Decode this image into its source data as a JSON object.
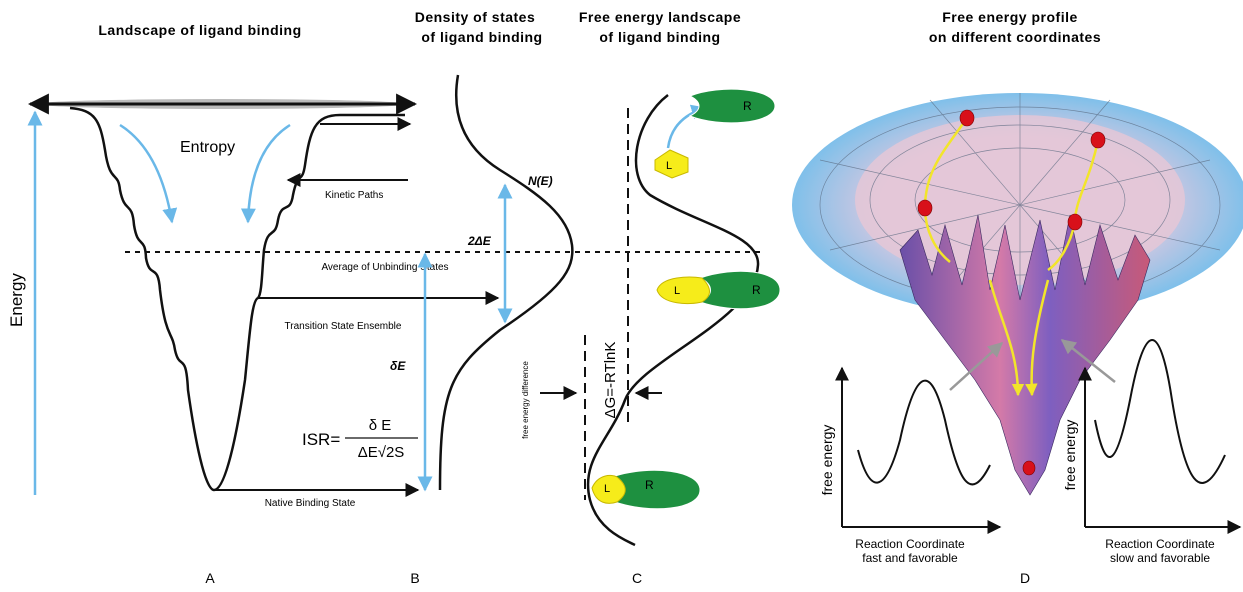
{
  "panels": [
    {
      "letter": "A",
      "title": [
        "Landscape of ligand binding"
      ]
    },
    {
      "letter": "B",
      "title": [
        "Density of states",
        "of ligand binding"
      ]
    },
    {
      "letter": "C",
      "title": [
        "Free energy landscape",
        "of ligand binding"
      ]
    },
    {
      "letter": "D",
      "title": [
        "Free energy profile",
        "on different coordinates"
      ]
    }
  ],
  "panel_a": {
    "energy": "Energy",
    "entropy": "Entropy",
    "kinetic_paths": "Kinetic Paths",
    "average": "Average of Unbinding States",
    "transition": "Transition State Ensemble",
    "native": "Native Binding State",
    "delta_e": "δE",
    "isr": {
      "prefix": "ISR=",
      "numerator": "δ E",
      "denominator": "ΔE√2S"
    }
  },
  "panel_b": {
    "two_delta_e": "2ΔE",
    "n_e": "N(E)"
  },
  "panel_c": {
    "free_energy_difference": "free energy difference",
    "delta_g": "ΔG=-RTlnK",
    "ligand": "L",
    "receptor": "R"
  },
  "panel_d": {
    "plots": [
      {
        "y_label": "free energy",
        "x_label": [
          "Reaction Coordinate",
          "fast and favorable"
        ]
      },
      {
        "y_label": "free energy",
        "x_label": [
          "Reaction Coordinate",
          "slow and favorable"
        ]
      }
    ]
  }
}
